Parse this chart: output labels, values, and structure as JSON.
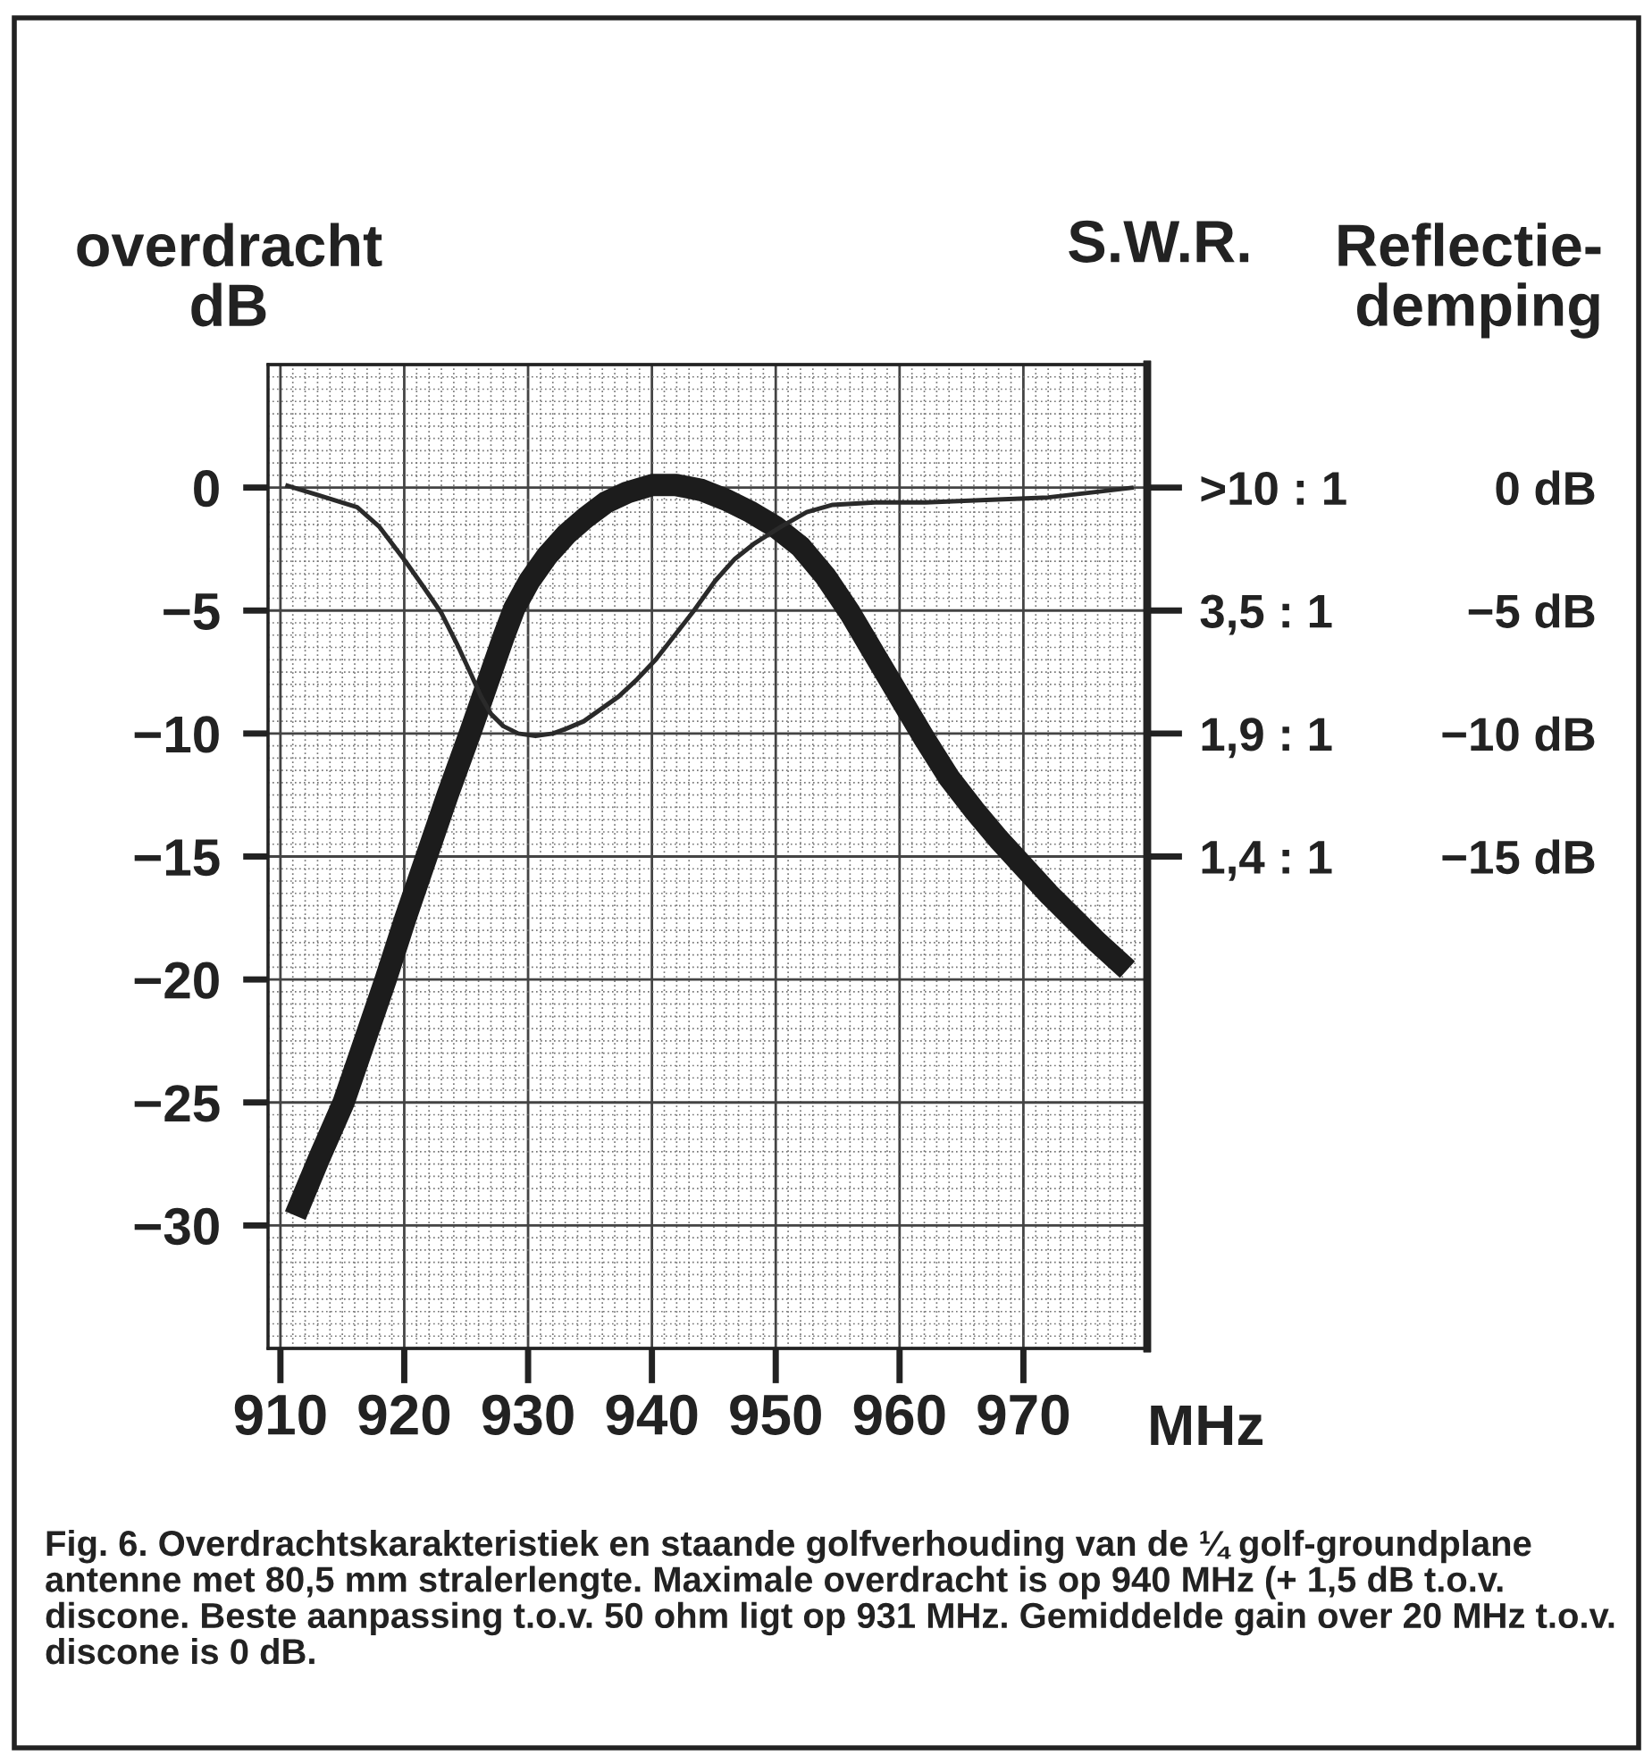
{
  "chart_data": {
    "type": "line",
    "xlabel": "MHz",
    "ylabel": "overdracht\ndB",
    "y2label": "S.W.R.",
    "y3label": "Reflectie-\ndemping",
    "annotations": [
      "Fig. 6. Overdrachtskarakteristiek en staande golfverhouding van de ¼ golf-groundplane antenne met 80,5 mm stralerlengte. Maximale overdracht is op 940 MHz (+ 1,5 dB t.o.v. discone. Beste aanpassing t.o.v. 50 ohm ligt op 931 MHz. Gemiddelde gain over 20 MHz t.o.v. discone is 0 dB."
    ],
    "xlim": [
      909,
      980
    ],
    "xticks": [
      910,
      920,
      930,
      940,
      950,
      960,
      970
    ],
    "ylim": [
      -35,
      5
    ],
    "yticks": [
      0,
      {
        "value": -5,
        "label": "−5"
      },
      {
        "value": -10,
        "label": "−10"
      },
      {
        "value": -15,
        "label": "−15"
      },
      {
        "value": -20,
        "label": "−20"
      },
      {
        "value": -25,
        "label": "−25"
      },
      {
        "value": -30,
        "label": "−30"
      }
    ],
    "y2_categories": [
      null,
      ">10 : 1",
      "3,5 : 1",
      "1,9 : 1",
      "1,4 : 1",
      null,
      null,
      null,
      null
    ],
    "y3lim": [
      -35,
      5
    ],
    "y3ticks": [
      {
        "value": 0,
        "label": "0 dB"
      },
      {
        "value": -5,
        "label": "−5 dB"
      },
      {
        "value": -10,
        "label": "−10 dB"
      },
      {
        "value": -15,
        "label": "−15 dB"
      }
    ],
    "grid": true,
    "series": [
      {
        "color": "#1c1c1c",
        "x": [
          911.2,
          913.1,
          915.1,
          916.8,
          918.5,
          920.1,
          921.8,
          923.5,
          925.3,
          926.2,
          927.1,
          928,
          928.9,
          930.1,
          931.5,
          933.1,
          934.7,
          936.3,
          938,
          940,
          942,
          944,
          946,
          948,
          950,
          952,
          954,
          956,
          958,
          960,
          962,
          964,
          966,
          968,
          970,
          972,
          974,
          976,
          978.4
        ],
        "values": [
          -29.6,
          -27.3,
          -25,
          -22.5,
          -20,
          -17.5,
          -15,
          -12.5,
          -10,
          -8.7,
          -7.4,
          -6.1,
          -4.9,
          -3.8,
          -2.8,
          -1.9,
          -1.2,
          -0.6,
          -0.2,
          0.1,
          0.1,
          -0.1,
          -0.5,
          -1,
          -1.6,
          -2.4,
          -3.6,
          -5.1,
          -6.8,
          -8.5,
          -10.2,
          -11.8,
          -13.1,
          -14.3,
          -15.4,
          -16.5,
          -17.5,
          -18.5,
          -19.6
        ]
      },
      {
        "color": "#2a2a2a",
        "x": [
          910.4,
          913,
          916.2,
          918,
          920.1,
          921.5,
          923,
          924.2,
          925.4,
          926.2,
          927,
          928,
          929.2,
          930.6,
          932,
          933.1,
          934.5,
          935.9,
          937.3,
          938.8,
          940.3,
          941.7,
          943.4,
          945.1,
          946.7,
          948.2,
          950.4,
          952.5,
          954.6,
          958,
          962.1,
          967,
          972,
          975.5,
          978.9
        ],
        "values": [
          0.1,
          -0.3,
          -0.8,
          -1.6,
          -3,
          -4,
          -5.1,
          -6.3,
          -7.6,
          -8.5,
          -9.2,
          -9.7,
          -10,
          -10.1,
          -10,
          -9.8,
          -9.5,
          -9,
          -8.5,
          -7.8,
          -7,
          -6.1,
          -5,
          -3.8,
          -2.9,
          -2.3,
          -1.6,
          -1,
          -0.7,
          -0.6,
          -0.6,
          -0.5,
          -0.4,
          -0.2,
          0
        ]
      }
    ]
  }
}
